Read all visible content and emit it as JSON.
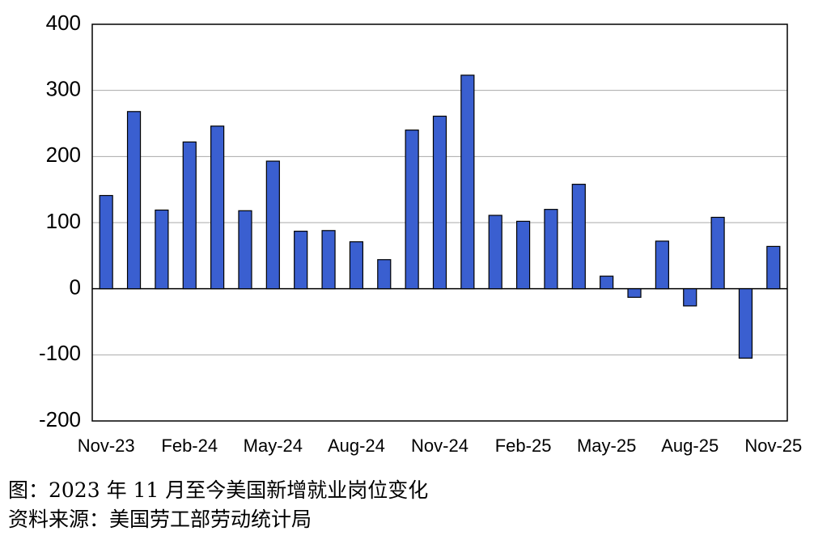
{
  "chart_data": {
    "type": "bar",
    "caption": "图：2023 年 11 月至今美国新增就业岗位变化",
    "source": "资料来源：美国劳工部劳动统计局",
    "categories": [
      "Nov-23",
      null,
      null,
      "Feb-24",
      null,
      null,
      "May-24",
      null,
      null,
      "Aug-24",
      null,
      null,
      "Nov-24",
      null,
      null,
      "Feb-25",
      null,
      null,
      "May-25",
      null,
      null,
      "Aug-25",
      null,
      null,
      "Nov-25"
    ],
    "values": [
      141,
      268,
      119,
      222,
      246,
      118,
      193,
      87,
      88,
      71,
      44,
      240,
      261,
      323,
      111,
      102,
      120,
      158,
      19,
      -13,
      72,
      -26,
      108,
      -105,
      64
    ],
    "color": "#3a5fd0",
    "ylim": [
      -200,
      400
    ],
    "yticks": [
      -200,
      -100,
      0,
      100,
      200,
      300,
      400
    ],
    "grid": true
  }
}
